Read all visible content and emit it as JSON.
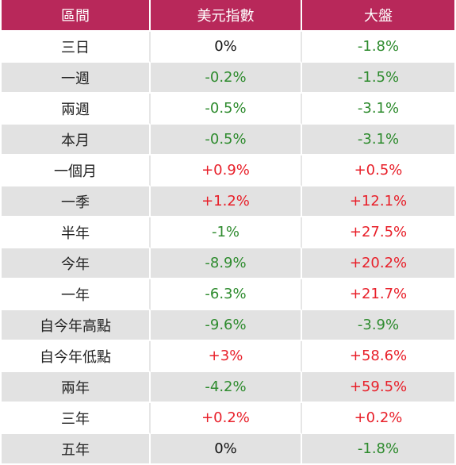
{
  "header": {
    "col_period": "區間",
    "col_usd_index": "美元指數",
    "col_market": "大盤"
  },
  "colors": {
    "header_bg": "#b8285a",
    "row_alt_bg": "#e2e2e2",
    "negative": "#2e8b2e",
    "positive": "#e8202a"
  },
  "rows": [
    {
      "period": "三日",
      "usd_index": "0%",
      "market": "-1.8%"
    },
    {
      "period": "一週",
      "usd_index": "-0.2%",
      "market": "-1.5%"
    },
    {
      "period": "兩週",
      "usd_index": "-0.5%",
      "market": "-3.1%"
    },
    {
      "period": "本月",
      "usd_index": "-0.5%",
      "market": "-3.1%"
    },
    {
      "period": "一個月",
      "usd_index": "+0.9%",
      "market": "+0.5%"
    },
    {
      "period": "一季",
      "usd_index": "+1.2%",
      "market": "+12.1%"
    },
    {
      "period": "半年",
      "usd_index": "-1%",
      "market": "+27.5%"
    },
    {
      "period": "今年",
      "usd_index": "-8.9%",
      "market": "+20.2%"
    },
    {
      "period": "一年",
      "usd_index": "-6.3%",
      "market": "+21.7%"
    },
    {
      "period": "自今年高點",
      "usd_index": "-9.6%",
      "market": "-3.9%"
    },
    {
      "period": "自今年低點",
      "usd_index": "+3%",
      "market": "+58.6%"
    },
    {
      "period": "兩年",
      "usd_index": "-4.2%",
      "market": "+59.5%"
    },
    {
      "period": "三年",
      "usd_index": "+0.2%",
      "market": "+0.2%"
    },
    {
      "period": "五年",
      "usd_index": "0%",
      "market": "-1.8%"
    }
  ]
}
